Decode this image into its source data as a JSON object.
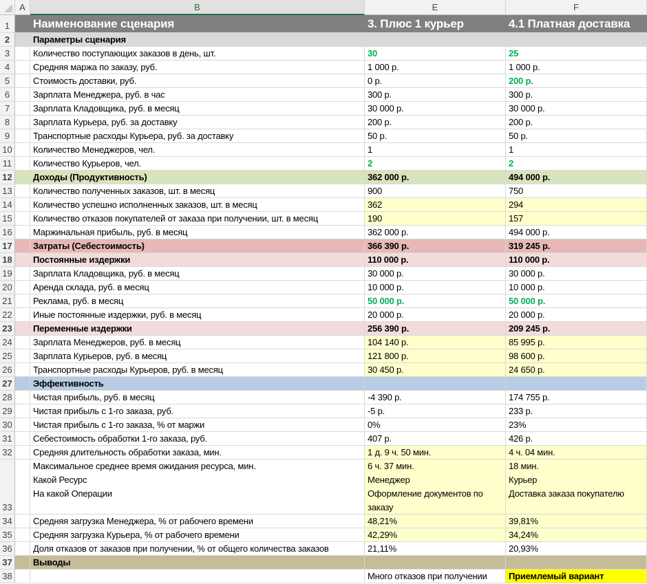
{
  "columns": [
    "A",
    "B",
    "E",
    "F"
  ],
  "selected_column": "B",
  "colors": {
    "title_fill": "#808080",
    "section_gray": "#d9d9d9",
    "income_green": "#d8e4bc",
    "cost_red": "#e6b8b7",
    "cost_pink": "#f2dcdb",
    "efficiency_blue": "#b8cce4",
    "conclusions_tan": "#c4bd97",
    "input_yellow": "#ffffcc",
    "highlight_yellow": "#ffff00",
    "accent_green_text": "#00b050"
  },
  "rows": [
    {
      "num": "1",
      "b": "Наименование сценария",
      "e": "3. Плюс 1 курьер",
      "f": "4.1 Платная доставка",
      "fill": "#808080",
      "title": true
    },
    {
      "num": "2",
      "b": "Параметры сценария",
      "e": "",
      "f": "",
      "fill": "#d9d9d9",
      "bold": true
    },
    {
      "num": "3",
      "b": "Количество поступающих заказов в день, шт.",
      "e": "30",
      "f": "25",
      "eGreen": true,
      "fGreen": true
    },
    {
      "num": "4",
      "b": "Средняя маржа по заказу, руб.",
      "e": "1 000 р.",
      "f": "1 000 р."
    },
    {
      "num": "5",
      "b": "Стоимость доставки, руб.",
      "e": "0 р.",
      "f": "200 р.",
      "fGreen": true
    },
    {
      "num": "6",
      "b": "Зарплата Менеджера, руб. в час",
      "e": "300 р.",
      "f": "300 р."
    },
    {
      "num": "7",
      "b": "Зарплата Кладовщика, руб. в месяц",
      "e": "30 000 р.",
      "f": "30 000 р."
    },
    {
      "num": "8",
      "b": "Зарплата Курьера, руб. за доставку",
      "e": "200 р.",
      "f": "200 р."
    },
    {
      "num": "9",
      "b": "Транспортные расходы Курьера, руб. за доставку",
      "e": "50 р.",
      "f": "50 р."
    },
    {
      "num": "10",
      "b": "Количество Менеджеров, чел.",
      "e": "1",
      "f": "1"
    },
    {
      "num": "11",
      "b": "Количество Курьеров, чел.",
      "e": "2",
      "f": "2",
      "eGreen": true,
      "fGreen": true
    },
    {
      "num": "12",
      "b": "Доходы (Продуктивность)",
      "e": "362 000 р.",
      "f": "494 000 р.",
      "fill": "#d8e4bc",
      "bold": true
    },
    {
      "num": "13",
      "b": "Количество полученных заказов, шт. в месяц",
      "e": "900",
      "f": "750"
    },
    {
      "num": "14",
      "b": "Количество успешно исполненных заказов, шт. в месяц",
      "e": "362",
      "f": "294",
      "yellow": true
    },
    {
      "num": "15",
      "b": "Количество отказов покупателей от заказа при получении, шт. в месяц",
      "e": "190",
      "f": "157",
      "yellow": true
    },
    {
      "num": "16",
      "b": "Маржинальная прибыль, руб. в месяц",
      "e": "362 000 р.",
      "f": "494 000 р."
    },
    {
      "num": "17",
      "b": "Затраты (Себестоимость)",
      "e": "366 390 р.",
      "f": "319 245 р.",
      "fill": "#e6b8b7",
      "bold": true
    },
    {
      "num": "18",
      "b": "Постоянные издержки",
      "e": "110 000 р.",
      "f": "110 000 р.",
      "fill": "#f2dcdb",
      "bold": true
    },
    {
      "num": "19",
      "b": "Зарплата Кладовщика, руб. в месяц",
      "e": "30 000 р.",
      "f": "30 000 р."
    },
    {
      "num": "20",
      "b": "Аренда склада, руб. в месяц",
      "e": "10 000 р.",
      "f": "10 000 р."
    },
    {
      "num": "21",
      "b": "Реклама, руб. в месяц",
      "e": "50 000 р.",
      "f": "50 000 р.",
      "eGreen": true,
      "fGreen": true
    },
    {
      "num": "22",
      "b": "Иные постоянные издержки, руб. в месяц",
      "e": "20 000 р.",
      "f": "20 000 р."
    },
    {
      "num": "23",
      "b": "Переменные издержки",
      "e": "256 390 р.",
      "f": "209 245 р.",
      "fill": "#f2dcdb",
      "bold": true
    },
    {
      "num": "24",
      "b": "Зарплата Менеджеров, руб. в месяц",
      "e": "104 140 р.",
      "f": "85 995 р.",
      "yellow": true
    },
    {
      "num": "25",
      "b": "Зарплата Курьеров, руб. в месяц",
      "e": "121 800 р.",
      "f": "98 600 р.",
      "yellow": true
    },
    {
      "num": "26",
      "b": "Транспортные расходы Курьеров, руб. в месяц",
      "e": "30 450 р.",
      "f": "24 650 р.",
      "yellow": true
    },
    {
      "num": "27",
      "b": "Эффективность",
      "e": "",
      "f": "",
      "fill": "#b8cce4",
      "bold": true
    },
    {
      "num": "28",
      "b": "Чистая прибыль, руб. в месяц",
      "e": "-4 390 р.",
      "f": "174 755 р."
    },
    {
      "num": "29",
      "b": "Чистая прибыль с 1-го заказа, руб.",
      "e": "-5 р.",
      "f": "233 р."
    },
    {
      "num": "30",
      "b": "Чистая прибыль с 1-го заказа, % от маржи",
      "e": "0%",
      "f": "23%"
    },
    {
      "num": "31",
      "b": "Себестоимость обработки 1-го заказа, руб.",
      "e": "407 р.",
      "f": "426 р."
    },
    {
      "num": "32",
      "b": "Средняя длительность обработки заказа, мин.",
      "e": "1 д. 9 ч. 50 мин.",
      "f": "4 ч. 04 мин.",
      "yellow": true
    },
    {
      "num": "33",
      "b": [
        "Максимальное среднее время ожидания ресурса, мин.",
        "Какой Ресурс",
        "На какой Операции"
      ],
      "e": [
        "6 ч. 37 мин.",
        "Менеджер",
        "Оформление документов по",
        "заказу"
      ],
      "f": [
        "18 мин.",
        "Курьер",
        "Доставка заказа покупателю"
      ],
      "yellow": true
    },
    {
      "num": "34",
      "b": "Средняя загрузка Менеджера, % от рабочего времени",
      "e": "48,21%",
      "f": "39,81%",
      "yellow": true
    },
    {
      "num": "35",
      "b": "Средняя загрузка Курьера, % от рабочего времени",
      "e": "42,29%",
      "f": "34,24%",
      "yellow": true
    },
    {
      "num": "36",
      "b": "Доля отказов от заказов при получении, % от общего количества заказов",
      "e": "21,11%",
      "f": "20,93%"
    },
    {
      "num": "37",
      "b": "Выводы",
      "e": "",
      "f": "",
      "fill": "#c4bd97",
      "bold": true
    },
    {
      "num": "38",
      "b": "",
      "e": "Много отказов при получении",
      "f": "Приемлемый вариант",
      "fHighlight": true
    }
  ]
}
